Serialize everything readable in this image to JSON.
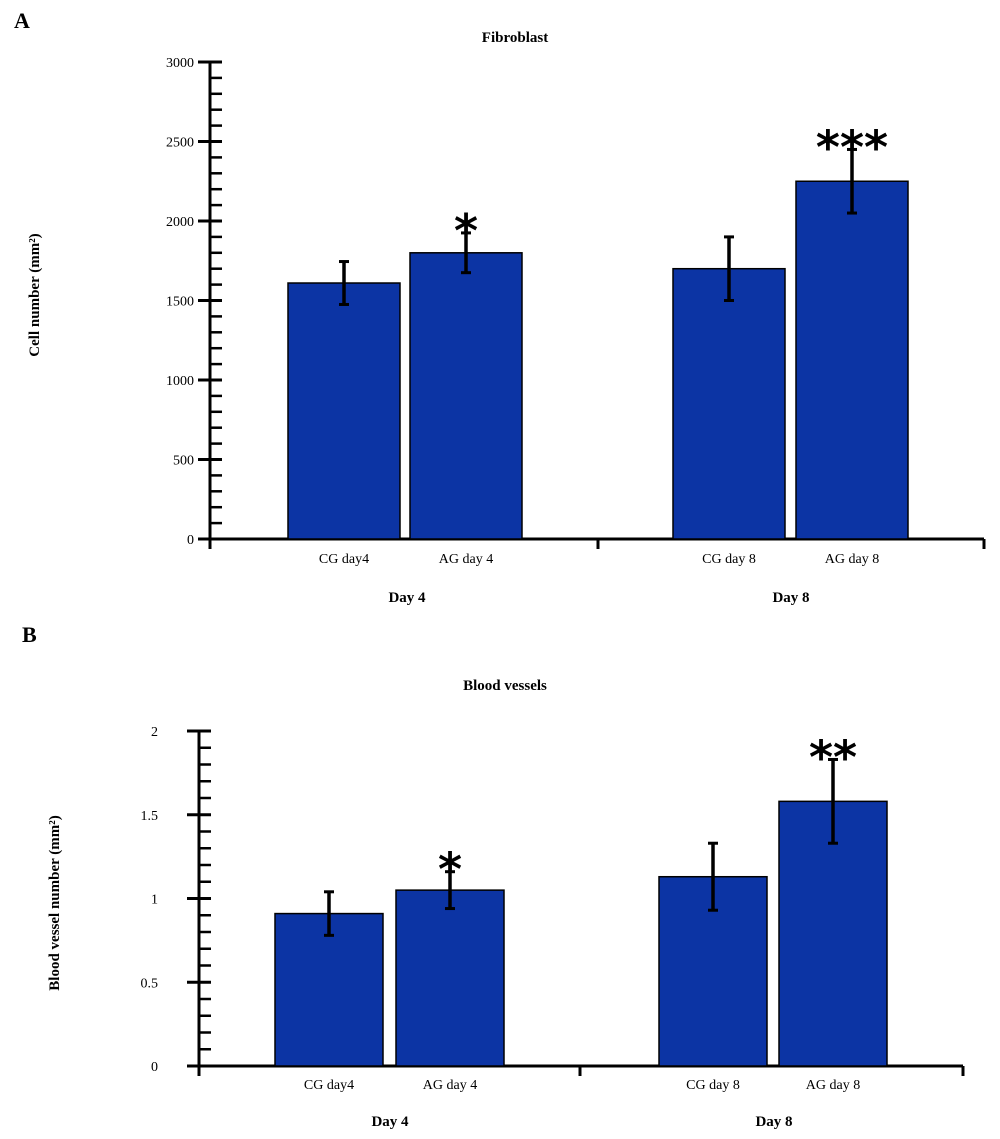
{
  "chart_data": [
    {
      "panel": "A",
      "type": "bar",
      "title": "Fibroblast",
      "ylabel": "Cell number (mm²)",
      "ylim": [
        0,
        3000
      ],
      "yticks": [
        "0",
        "500",
        "1000",
        "1500",
        "2000",
        "2500",
        "3000"
      ],
      "ytick_values": [
        0,
        500,
        1000,
        1500,
        2000,
        2500,
        3000
      ],
      "categories": [
        "CG day4",
        "AG day 4",
        "CG day 8",
        "AG day 8"
      ],
      "groups": [
        "Day 4",
        "Day 8"
      ],
      "values": [
        1610,
        1800,
        1700,
        2250
      ],
      "errors": [
        135,
        125,
        200,
        200
      ],
      "significance": [
        "",
        "*",
        "",
        "***"
      ],
      "bar_color": "#0c34a4",
      "grid": false
    },
    {
      "panel": "B",
      "type": "bar",
      "title": "Blood vessels",
      "ylabel": "Blood vessel number (mm²)",
      "ylim": [
        0,
        2
      ],
      "yticks": [
        "0",
        "0.5",
        "1",
        "1.5",
        "2"
      ],
      "ytick_values": [
        0,
        0.5,
        1,
        1.5,
        2
      ],
      "categories": [
        "CG day4",
        "AG day 4",
        "CG day 8",
        "AG day 8"
      ],
      "groups": [
        "Day 4",
        "Day 8"
      ],
      "values": [
        0.91,
        1.05,
        1.13,
        1.58
      ],
      "errors": [
        0.13,
        0.11,
        0.2,
        0.25
      ],
      "significance": [
        "",
        "*",
        "",
        "**"
      ],
      "bar_color": "#0c34a4",
      "grid": false
    }
  ]
}
